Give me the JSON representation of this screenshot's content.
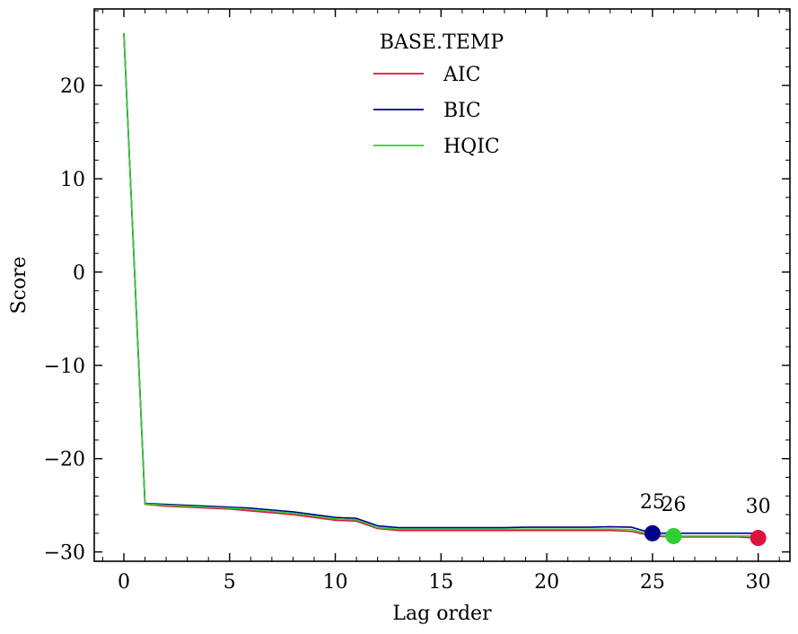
{
  "chart_data": {
    "type": "line",
    "xlabel": "Lag order",
    "ylabel": "Score",
    "xlim": [
      -1.4,
      31.5
    ],
    "ylim": [
      -31.0,
      28.2
    ],
    "xticks": [
      0,
      5,
      10,
      15,
      20,
      25,
      30
    ],
    "xtick_labels": [
      "0",
      "5",
      "10",
      "15",
      "20",
      "25",
      "30"
    ],
    "yticks": [
      -30,
      -20,
      -10,
      0,
      10,
      20
    ],
    "ytick_labels": [
      "−30",
      "−20",
      "−10",
      "0",
      "10",
      "20"
    ],
    "grid": false,
    "legend": {
      "title": "BASE.TEMP",
      "placement": "top-center"
    },
    "x": [
      0,
      1,
      2,
      3,
      4,
      5,
      6,
      7,
      8,
      9,
      10,
      11,
      12,
      13,
      14,
      15,
      16,
      17,
      18,
      19,
      20,
      21,
      22,
      23,
      24,
      25,
      26,
      27,
      28,
      29,
      30
    ],
    "series": [
      {
        "name": "AIC",
        "color": "#dc143c",
        "values": [
          25.6,
          -24.9,
          -25.1,
          -25.2,
          -25.3,
          -25.4,
          -25.6,
          -25.8,
          -26.0,
          -26.3,
          -26.6,
          -26.7,
          -27.5,
          -27.7,
          -27.7,
          -27.7,
          -27.7,
          -27.7,
          -27.7,
          -27.7,
          -27.7,
          -27.7,
          -27.7,
          -27.7,
          -27.8,
          -28.3,
          -28.4,
          -28.4,
          -28.4,
          -28.4,
          -28.5
        ]
      },
      {
        "name": "BIC",
        "color": "#00008b",
        "values": [
          25.6,
          -24.8,
          -24.9,
          -25.0,
          -25.1,
          -25.2,
          -25.3,
          -25.5,
          -25.7,
          -26.0,
          -26.3,
          -26.4,
          -27.2,
          -27.4,
          -27.4,
          -27.4,
          -27.4,
          -27.4,
          -27.4,
          -27.35,
          -27.35,
          -27.35,
          -27.35,
          -27.3,
          -27.35,
          -28.0,
          -28.0,
          -28.0,
          -28.0,
          -28.0,
          -28.0
        ]
      },
      {
        "name": "HQIC",
        "color": "#32cd32",
        "values": [
          25.6,
          -24.85,
          -25.0,
          -25.1,
          -25.2,
          -25.3,
          -25.45,
          -25.65,
          -25.85,
          -26.15,
          -26.45,
          -26.55,
          -27.4,
          -27.55,
          -27.55,
          -27.55,
          -27.55,
          -27.55,
          -27.55,
          -27.55,
          -27.55,
          -27.55,
          -27.55,
          -27.55,
          -27.6,
          -28.2,
          -28.3,
          -28.3,
          -28.3,
          -28.3,
          -28.3
        ]
      }
    ],
    "markers": [
      {
        "series": "AIC",
        "x": 30,
        "y": -28.5,
        "label": "30",
        "color": "#dc143c"
      },
      {
        "series": "BIC",
        "x": 25,
        "y": -28.0,
        "label": "25",
        "color": "#00008b"
      },
      {
        "series": "HQIC",
        "x": 26,
        "y": -28.3,
        "label": "26",
        "color": "#32cd32"
      }
    ]
  }
}
